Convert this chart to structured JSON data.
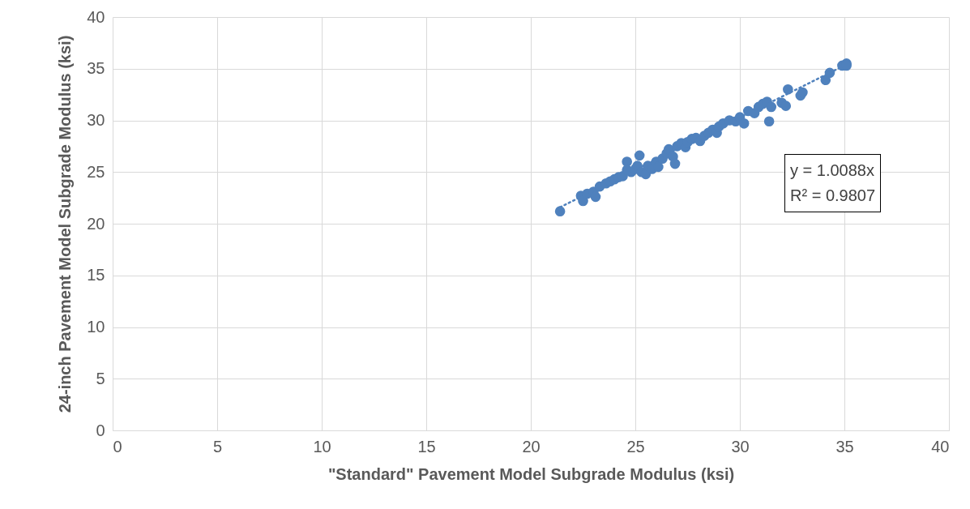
{
  "chart_data": {
    "type": "scatter",
    "xlabel": "\"Standard\" Pavement Model Subgrade Modulus (ksi)",
    "ylabel": "24-inch Pavement Model Subgrade Modulus (ksi)",
    "xlim": [
      0,
      40
    ],
    "ylim": [
      0,
      40
    ],
    "xticks": [
      0,
      5,
      10,
      15,
      20,
      25,
      30,
      35,
      40
    ],
    "yticks": [
      0,
      5,
      10,
      15,
      20,
      25,
      30,
      35,
      40
    ],
    "grid": true,
    "marker": "circle",
    "annotations": [
      "y = 1.0088x",
      "R² = 0.9807"
    ],
    "series": [
      {
        "color": "#4f81bd",
        "x": [
          21.4,
          22.4,
          22.5,
          22.7,
          23.0,
          23.1,
          23.3,
          23.6,
          23.8,
          24.0,
          24.2,
          24.4,
          24.6,
          24.6,
          24.8,
          25.0,
          25.1,
          25.2,
          25.3,
          25.5,
          25.6,
          25.8,
          26.0,
          26.1,
          26.3,
          26.5,
          26.6,
          26.8,
          26.9,
          27.0,
          27.2,
          27.4,
          27.5,
          27.7,
          27.9,
          28.1,
          28.3,
          28.5,
          28.7,
          28.9,
          29.0,
          29.2,
          29.5,
          29.8,
          30.0,
          30.2,
          30.4,
          30.7,
          30.9,
          31.1,
          31.3,
          31.4,
          31.5,
          32.0,
          32.2,
          32.3,
          32.9,
          33.0,
          34.1,
          34.3,
          34.9,
          35.1,
          35.1
        ],
        "values": [
          21.2,
          22.7,
          22.2,
          22.9,
          23.1,
          22.6,
          23.6,
          23.9,
          24.1,
          24.3,
          24.5,
          24.6,
          26.0,
          25.2,
          25.0,
          25.3,
          25.6,
          26.6,
          25.0,
          24.8,
          25.6,
          25.3,
          26.0,
          25.5,
          26.3,
          26.8,
          27.2,
          26.5,
          25.8,
          27.5,
          27.8,
          27.4,
          27.9,
          28.2,
          28.3,
          28.0,
          28.5,
          28.8,
          29.1,
          28.8,
          29.4,
          29.7,
          30.0,
          29.9,
          30.3,
          29.7,
          30.9,
          30.7,
          31.3,
          31.6,
          31.8,
          29.9,
          31.3,
          31.7,
          31.4,
          33.0,
          32.4,
          32.7,
          33.9,
          34.6,
          35.3,
          35.5,
          35.3
        ]
      },
      {
        "type": "line",
        "color": "#4f81bd",
        "line_style": "dotted",
        "marker": "none",
        "x": [
          21.4,
          35.2
        ],
        "values": [
          21.59,
          35.51
        ]
      }
    ]
  }
}
